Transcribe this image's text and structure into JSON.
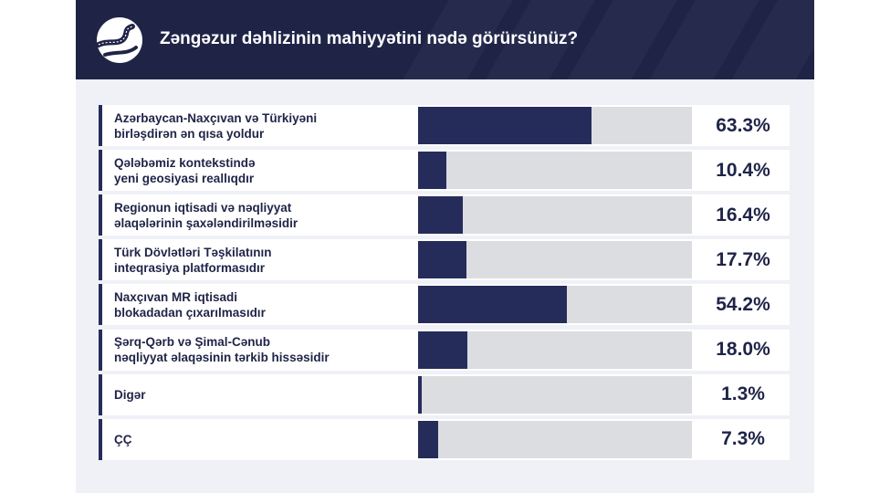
{
  "colors": {
    "header_bg": "#1f2447",
    "bar": "#262c5a",
    "track": "#dcdde1",
    "card_bg": "#eff1f7",
    "text": "#1f2447"
  },
  "header": {
    "logo_icon": "winding-road-icon",
    "title": "Zəngəzur dəhlizinin mahiyyətini nədə görürsünüz?"
  },
  "chart_data": {
    "type": "bar",
    "orientation": "horizontal",
    "title": "Zəngəzur dəhlizinin mahiyyətini nədə görürsünüz?",
    "xlim": [
      0,
      100
    ],
    "categories": [
      [
        "Azərbaycan-Naxçıvan və Türkiyəni",
        "birləşdirən ən qısa yoldur"
      ],
      [
        "Qələbəmiz kontekstində",
        "yeni geosiyasi reallıqdır"
      ],
      [
        "Regionun iqtisadi və nəqliyyat",
        "əlaqələrinin şaxələndirilməsidir"
      ],
      [
        "Türk Dövlətləri Təşkilatının",
        "inteqrasiya platformasıdır"
      ],
      [
        "Naxçıvan MR iqtisadi",
        "blokadadan çıxarılmasıdır"
      ],
      [
        "Şərq-Qərb və Şimal-Cənub",
        "nəqliyyat əlaqəsinin tərkib hissəsidir"
      ],
      [
        "Digər"
      ],
      [
        "ÇÇ"
      ]
    ],
    "values": [
      63.3,
      10.4,
      16.4,
      17.7,
      54.2,
      18.0,
      1.3,
      7.3
    ],
    "value_labels": [
      "63.3%",
      "10.4%",
      "16.4%",
      "17.7%",
      "54.2%",
      "18.0%",
      "1.3%",
      "7.3%"
    ]
  }
}
